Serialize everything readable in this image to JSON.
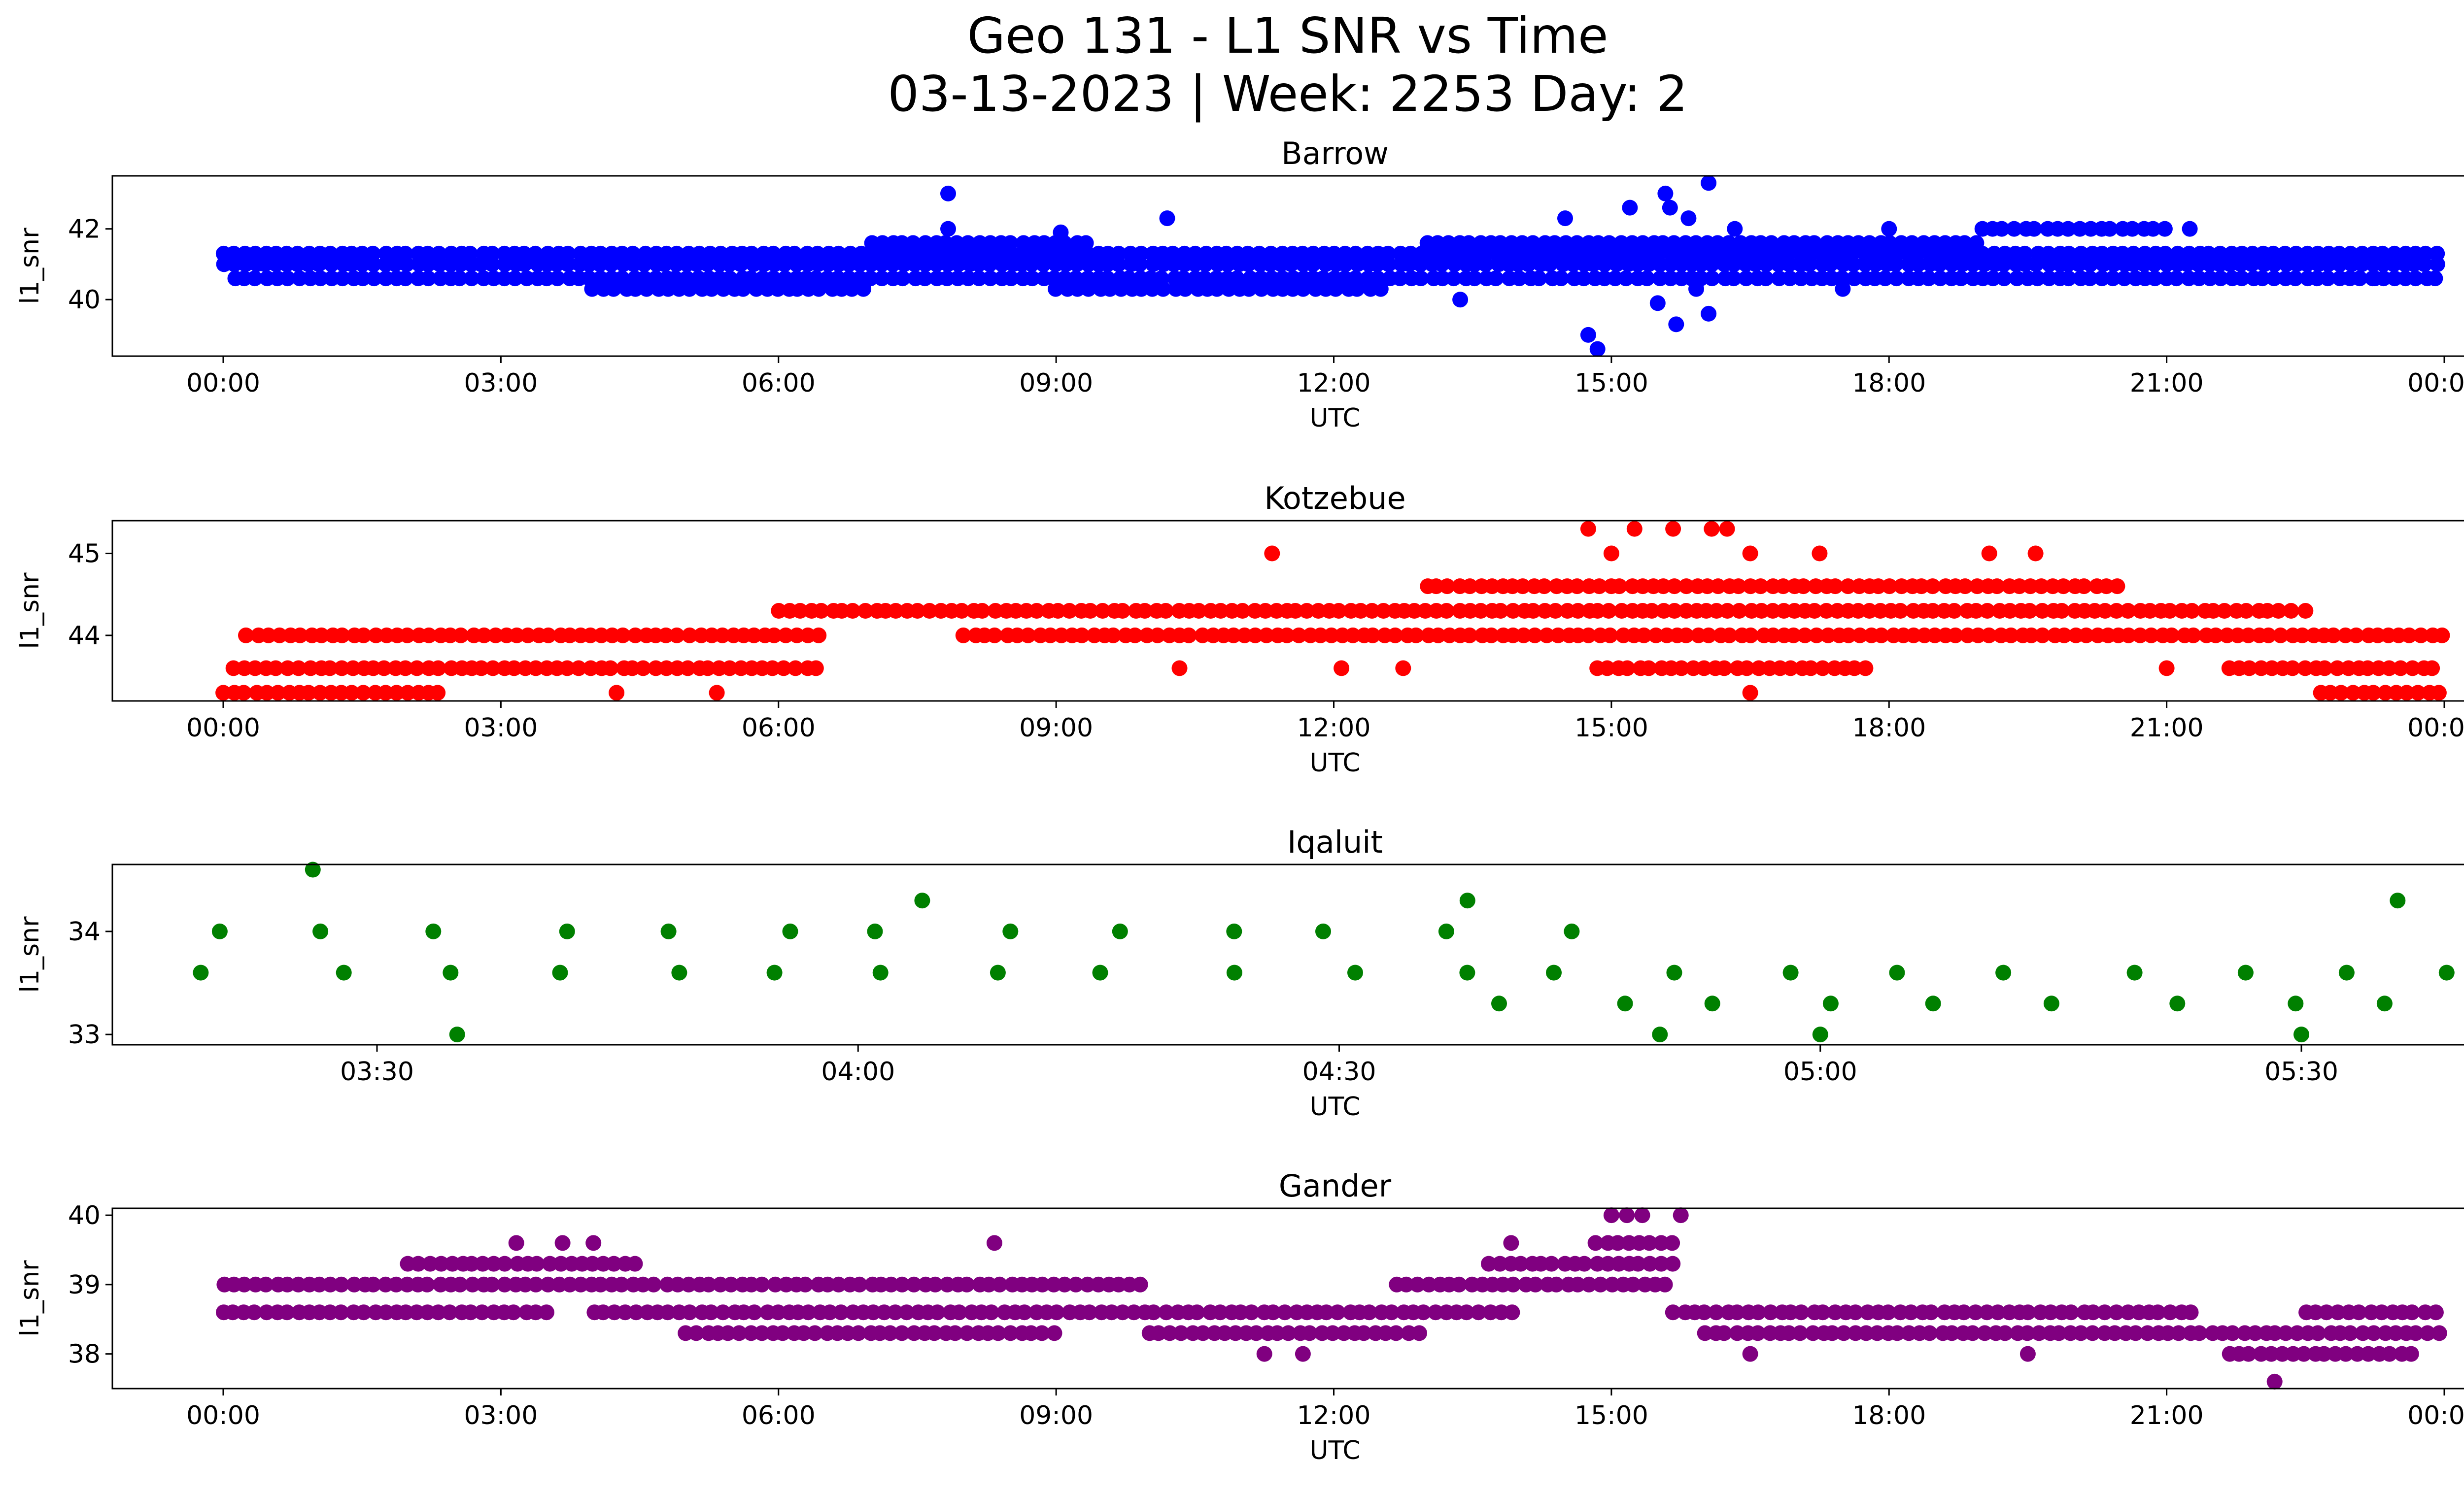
{
  "figure": {
    "title_line1": "Geo 131 - L1 SNR vs Time",
    "title_line2": "03-13-2023 | Week: 2253 Day: 2"
  },
  "chart_data": [
    {
      "type": "scatter",
      "title": "Barrow",
      "xlabel": "UTC",
      "ylabel": "l1_snr",
      "color": "#0000ff",
      "x_ticks": [
        "00:00",
        "03:00",
        "06:00",
        "09:00",
        "12:00",
        "15:00",
        "18:00",
        "21:00",
        "00:00"
      ],
      "y_ticks": [
        40,
        42
      ],
      "xlim": [
        "2023-03-13T00:00",
        "2023-03-14T00:00"
      ],
      "ylim": [
        38.4,
        43.5
      ],
      "bands": [
        {
          "from": "2023-03-13T00:00",
          "to": "2023-03-13T24:00",
          "ys": [
            40.6,
            41.0,
            41.3
          ]
        },
        {
          "from": "2023-03-13T04:00",
          "to": "2023-03-13T07:00",
          "ys": [
            40.3
          ]
        },
        {
          "from": "2023-03-13T07:00",
          "to": "2023-03-13T09:20",
          "ys": [
            41.6
          ]
        },
        {
          "from": "2023-03-13T09:00",
          "to": "2023-03-13T12:30",
          "ys": [
            40.3
          ]
        },
        {
          "from": "2023-03-13T13:00",
          "to": "2023-03-13T19:00",
          "ys": [
            41.6
          ]
        },
        {
          "from": "2023-03-13T19:00",
          "to": "2023-03-13T21:00",
          "ys": [
            42.0
          ]
        }
      ],
      "points": [
        {
          "x": "2023-03-13T07:50",
          "y": 43.0
        },
        {
          "x": "2023-03-13T07:50",
          "y": 42.0
        },
        {
          "x": "2023-03-13T10:12",
          "y": 42.3
        },
        {
          "x": "2023-03-13T09:03",
          "y": 41.9
        },
        {
          "x": "2023-03-13T14:30",
          "y": 42.3
        },
        {
          "x": "2023-03-13T14:45",
          "y": 39.0
        },
        {
          "x": "2023-03-13T14:51",
          "y": 38.6
        },
        {
          "x": "2023-03-13T15:12",
          "y": 42.6
        },
        {
          "x": "2023-03-13T15:30",
          "y": 39.9
        },
        {
          "x": "2023-03-13T15:35",
          "y": 43.0
        },
        {
          "x": "2023-03-13T15:38",
          "y": 42.6
        },
        {
          "x": "2023-03-13T15:42",
          "y": 39.3
        },
        {
          "x": "2023-03-13T15:55",
          "y": 40.3
        },
        {
          "x": "2023-03-13T16:03",
          "y": 43.3
        },
        {
          "x": "2023-03-13T16:03",
          "y": 39.6
        },
        {
          "x": "2023-03-13T15:50",
          "y": 42.3
        },
        {
          "x": "2023-03-13T16:20",
          "y": 42.0
        },
        {
          "x": "2023-03-13T13:22",
          "y": 40.0
        },
        {
          "x": "2023-03-13T17:30",
          "y": 40.3
        },
        {
          "x": "2023-03-13T18:00",
          "y": 42.0
        },
        {
          "x": "2023-03-13T21:15",
          "y": 42.0
        },
        {
          "x": "2023-03-13T23:15",
          "y": 40.6
        }
      ]
    },
    {
      "type": "scatter",
      "title": "Kotzebue",
      "xlabel": "UTC",
      "ylabel": "l1_snr",
      "color": "#ff0000",
      "x_ticks": [
        "00:00",
        "03:00",
        "06:00",
        "09:00",
        "12:00",
        "15:00",
        "18:00",
        "21:00",
        "00:00"
      ],
      "y_ticks": [
        44,
        45
      ],
      "xlim": [
        "2023-03-13T00:00",
        "2023-03-14T00:00"
      ],
      "ylim": [
        43.2,
        45.4
      ],
      "bands": [
        {
          "from": "2023-03-13T00:00",
          "to": "2023-03-13T06:30",
          "ys": [
            43.6
          ]
        },
        {
          "from": "2023-03-13T00:00",
          "to": "2023-03-13T02:20",
          "ys": [
            43.3
          ]
        },
        {
          "from": "2023-03-13T00:15",
          "to": "2023-03-13T06:30",
          "ys": [
            44.0
          ]
        },
        {
          "from": "2023-03-13T06:00",
          "to": "2023-03-13T22:20",
          "ys": [
            44.3
          ]
        },
        {
          "from": "2023-03-13T08:00",
          "to": "2023-03-13T24:00",
          "ys": [
            44.0
          ]
        },
        {
          "from": "2023-03-13T13:00",
          "to": "2023-03-13T20:30",
          "ys": [
            44.6
          ]
        },
        {
          "from": "2023-03-13T14:50",
          "to": "2023-03-13T17:50",
          "ys": [
            43.6
          ]
        },
        {
          "from": "2023-03-13T21:40",
          "to": "2023-03-13T24:00",
          "ys": [
            43.6
          ]
        },
        {
          "from": "2023-03-13T22:40",
          "to": "2023-03-13T24:00",
          "ys": [
            43.3
          ]
        }
      ],
      "points": [
        {
          "x": "2023-03-13T11:20",
          "y": 45.0
        },
        {
          "x": "2023-03-13T14:45",
          "y": 45.3
        },
        {
          "x": "2023-03-13T15:15",
          "y": 45.3
        },
        {
          "x": "2023-03-13T15:40",
          "y": 45.3
        },
        {
          "x": "2023-03-13T16:05",
          "y": 45.3
        },
        {
          "x": "2023-03-13T16:15",
          "y": 45.3
        },
        {
          "x": "2023-03-13T15:00",
          "y": 45.0
        },
        {
          "x": "2023-03-13T16:30",
          "y": 45.0
        },
        {
          "x": "2023-03-13T17:15",
          "y": 45.0
        },
        {
          "x": "2023-03-13T19:05",
          "y": 45.0
        },
        {
          "x": "2023-03-13T19:35",
          "y": 45.0
        },
        {
          "x": "2023-03-13T10:20",
          "y": 43.6
        },
        {
          "x": "2023-03-13T12:05",
          "y": 43.6
        },
        {
          "x": "2023-03-13T12:45",
          "y": 43.6
        },
        {
          "x": "2023-03-13T21:00",
          "y": 43.6
        },
        {
          "x": "2023-03-13T04:15",
          "y": 43.3
        },
        {
          "x": "2023-03-13T05:20",
          "y": 43.3
        },
        {
          "x": "2023-03-13T16:30",
          "y": 43.3
        },
        {
          "x": "2023-03-13T22:30",
          "y": 44.3
        }
      ]
    },
    {
      "type": "scatter",
      "title": "Iqaluit",
      "xlabel": "UTC",
      "ylabel": "l1_snr",
      "color": "#008000",
      "x_ticks": [
        "03:30",
        "04:00",
        "04:30",
        "05:00",
        "05:30"
      ],
      "y_ticks": [
        33,
        34
      ],
      "xlim": [
        "2023-03-13T03:15",
        "2023-03-13T05:45"
      ],
      "ylim": [
        32.9,
        34.65
      ],
      "bands": [
        {
          "from": "2023-03-13T03:20",
          "to": "2023-03-13T05:40",
          "ys": [
            33.6
          ]
        },
        {
          "from": "2023-03-13T03:20",
          "to": "2023-03-13T04:50",
          "ys": [
            34.0
          ]
        },
        {
          "from": "2023-03-13T04:40",
          "to": "2023-03-13T05:40",
          "ys": [
            33.3
          ]
        }
      ],
      "points": [
        {
          "x": "2023-03-13T03:26",
          "y": 34.6
        },
        {
          "x": "2023-03-13T03:35",
          "y": 33.0
        },
        {
          "x": "2023-03-13T04:50",
          "y": 33.0
        },
        {
          "x": "2023-03-13T05:00",
          "y": 33.0
        },
        {
          "x": "2023-03-13T05:30",
          "y": 33.0
        },
        {
          "x": "2023-03-13T05:36",
          "y": 34.3
        },
        {
          "x": "2023-03-13T04:38",
          "y": 34.3
        },
        {
          "x": "2023-03-13T04:04",
          "y": 34.3
        }
      ]
    },
    {
      "type": "scatter",
      "title": "Gander",
      "xlabel": "UTC",
      "ylabel": "l1_snr",
      "color": "#800080",
      "x_ticks": [
        "00:00",
        "03:00",
        "06:00",
        "09:00",
        "12:00",
        "15:00",
        "18:00",
        "21:00",
        "00:00"
      ],
      "y_ticks": [
        38,
        39,
        40
      ],
      "xlim": [
        "2023-03-13T00:00",
        "2023-03-14T00:00"
      ],
      "ylim": [
        37.5,
        40.1
      ],
      "bands": [
        {
          "from": "2023-03-13T00:00",
          "to": "2023-03-13T10:00",
          "ys": [
            39.0
          ]
        },
        {
          "from": "2023-03-13T00:00",
          "to": "2023-03-13T03:30",
          "ys": [
            38.6
          ]
        },
        {
          "from": "2023-03-13T02:00",
          "to": "2023-03-13T04:30",
          "ys": [
            39.3
          ]
        },
        {
          "from": "2023-03-13T04:00",
          "to": "2023-03-13T14:00",
          "ys": [
            38.6
          ]
        },
        {
          "from": "2023-03-13T05:00",
          "to": "2023-03-13T09:00",
          "ys": [
            38.3
          ]
        },
        {
          "from": "2023-03-13T10:00",
          "to": "2023-03-13T13:00",
          "ys": [
            38.3
          ]
        },
        {
          "from": "2023-03-13T12:40",
          "to": "2023-03-13T15:40",
          "ys": [
            39.0
          ]
        },
        {
          "from": "2023-03-13T13:40",
          "to": "2023-03-13T15:40",
          "ys": [
            39.3
          ]
        },
        {
          "from": "2023-03-13T14:50",
          "to": "2023-03-13T15:40",
          "ys": [
            39.6
          ]
        },
        {
          "from": "2023-03-13T15:40",
          "to": "2023-03-13T21:20",
          "ys": [
            38.6
          ]
        },
        {
          "from": "2023-03-13T16:00",
          "to": "2023-03-13T24:00",
          "ys": [
            38.3
          ]
        },
        {
          "from": "2023-03-13T21:40",
          "to": "2023-03-13T23:40",
          "ys": [
            38.0
          ]
        },
        {
          "from": "2023-03-13T22:30",
          "to": "2023-03-13T24:00",
          "ys": [
            38.6
          ]
        }
      ],
      "points": [
        {
          "x": "2023-03-13T15:00",
          "y": 40.0
        },
        {
          "x": "2023-03-13T15:10",
          "y": 40.0
        },
        {
          "x": "2023-03-13T15:20",
          "y": 40.0
        },
        {
          "x": "2023-03-13T15:45",
          "y": 40.0
        },
        {
          "x": "2023-03-13T22:10",
          "y": 37.6
        },
        {
          "x": "2023-03-13T11:15",
          "y": 38.0
        },
        {
          "x": "2023-03-13T11:40",
          "y": 38.0
        },
        {
          "x": "2023-03-13T16:30",
          "y": 38.0
        },
        {
          "x": "2023-03-13T19:30",
          "y": 38.0
        },
        {
          "x": "2023-03-13T08:20",
          "y": 39.6
        },
        {
          "x": "2023-03-13T13:55",
          "y": 39.6
        },
        {
          "x": "2023-03-13T03:10",
          "y": 39.6
        },
        {
          "x": "2023-03-13T03:40",
          "y": 39.6
        },
        {
          "x": "2023-03-13T04:00",
          "y": 39.6
        }
      ]
    }
  ]
}
